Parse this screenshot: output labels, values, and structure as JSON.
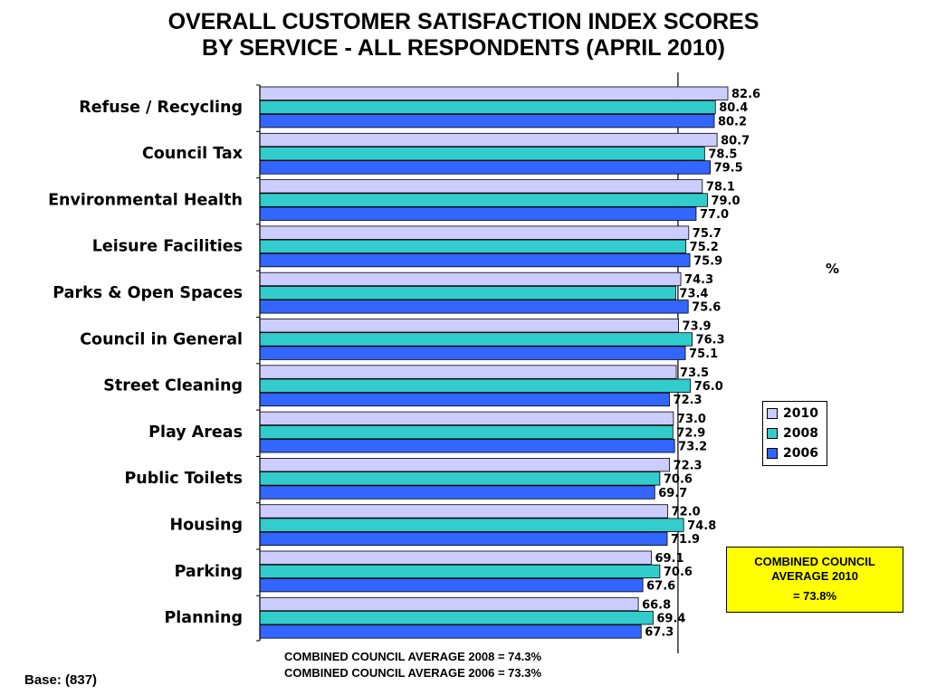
{
  "title_line1": "OVERALL CUSTOMER SATISFACTION INDEX SCORES",
  "title_line2": "BY SERVICE - ALL RESPONDENTS (APRIL 2010)",
  "unit_label": "%",
  "average_box": {
    "line1": "COMBINED COUNCIL",
    "line2": "AVERAGE 2010",
    "value": "= 73.8%"
  },
  "notes": {
    "line1": "COMBINED COUNCIL AVERAGE 2008 = 74.3%",
    "line2": "COMBINED COUNCIL AVERAGE 2006 = 73.3%"
  },
  "base": "Base: (837)",
  "chart_data": {
    "type": "bar",
    "orientation": "horizontal",
    "title": "OVERALL CUSTOMER SATISFACTION INDEX SCORES BY SERVICE - ALL RESPONDENTS (APRIL 2010)",
    "categories": [
      "Refuse / Recycling",
      "Council Tax",
      "Environmental Health",
      "Leisure Facilities",
      "Parks & Open Spaces",
      "Council in General",
      "Street Cleaning",
      "Play Areas",
      "Public Toilets",
      "Housing",
      "Parking",
      "Planning"
    ],
    "series": [
      {
        "name": "2010",
        "color": "#ccccff",
        "values": [
          82.6,
          80.7,
          78.1,
          75.7,
          74.3,
          73.9,
          73.5,
          73.0,
          72.3,
          72.0,
          69.1,
          66.8
        ]
      },
      {
        "name": "2008",
        "color": "#33cccc",
        "values": [
          80.4,
          78.5,
          79.0,
          75.2,
          73.4,
          76.3,
          76.0,
          72.9,
          70.6,
          74.8,
          70.6,
          69.4
        ]
      },
      {
        "name": "2006",
        "color": "#3366ff",
        "values": [
          80.2,
          79.5,
          77.0,
          75.9,
          75.6,
          75.1,
          72.3,
          73.2,
          69.7,
          71.9,
          67.6,
          67.3
        ]
      }
    ],
    "reference_line": {
      "value": 73.8
    },
    "legend_position": "right",
    "grid": false
  }
}
